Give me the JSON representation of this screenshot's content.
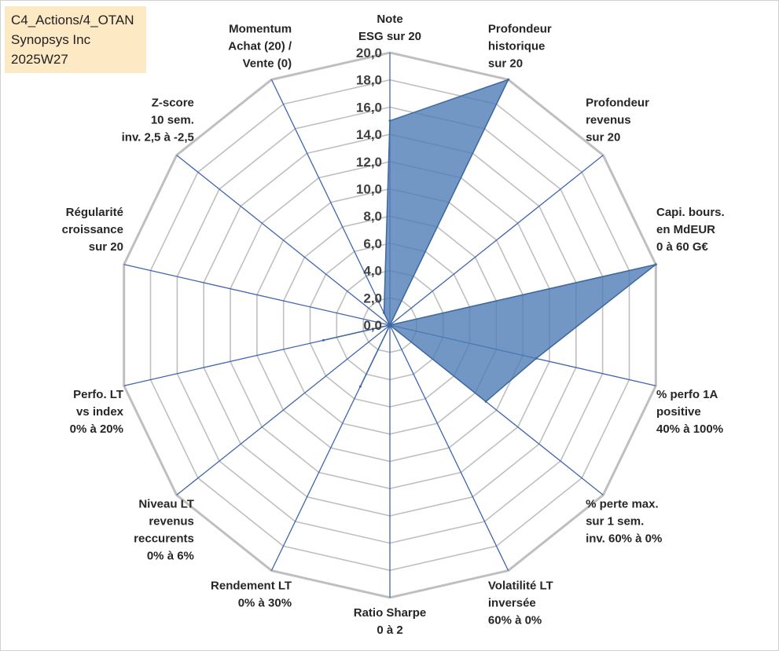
{
  "info_box": [
    "C4_Actions/4_OTAN",
    "Synopsys Inc",
    "2025W27"
  ],
  "colors": {
    "series_fill": "#4f7db5",
    "series_stroke": "#3d68a0",
    "grid": "#bfbfbf",
    "spoke": "#3f64b0"
  },
  "chart_data": {
    "type": "radar",
    "title": "",
    "rmin": 0,
    "rmax": 20,
    "tick_step": 2,
    "ticks": [
      "0,0",
      "2,0",
      "4,0",
      "6,0",
      "8,0",
      "10,0",
      "12,0",
      "14,0",
      "16,0",
      "18,0",
      "20,0"
    ],
    "axes": [
      [
        "Note",
        "ESG sur 20"
      ],
      [
        "Profondeur",
        "historique",
        "sur 20"
      ],
      [
        "Profondeur",
        "revenus",
        "sur 20"
      ],
      [
        "Capi. bours.",
        "en MdEUR",
        "0 à 60 G€"
      ],
      [
        "% perfo 1A",
        "positive",
        "40% à 100%"
      ],
      [
        "% perte max.",
        "sur 1 sem.",
        "inv. 60% à 0%"
      ],
      [
        "Volatilité LT",
        "inversée",
        "60% à 0%"
      ],
      [
        "Ratio Sharpe",
        "0 à 2"
      ],
      [
        "Rendement LT",
        "0% à 30%"
      ],
      [
        "Niveau LT",
        "revenus",
        "reccurents",
        "0% à 6%"
      ],
      [
        "Perfo. LT",
        "vs index",
        "0% à 20%"
      ],
      [
        "Régularité",
        "croissance",
        "sur 20"
      ],
      [
        "Z-score",
        "10 sem.",
        "inv. 2,5 à -2,5"
      ],
      [
        "Momentum",
        "Achat (20) /",
        "Vente (0)"
      ]
    ],
    "series": [
      {
        "values": [
          15,
          20,
          0,
          20,
          11,
          9,
          0,
          0,
          5,
          0,
          5,
          0,
          0,
          1
        ]
      }
    ]
  }
}
